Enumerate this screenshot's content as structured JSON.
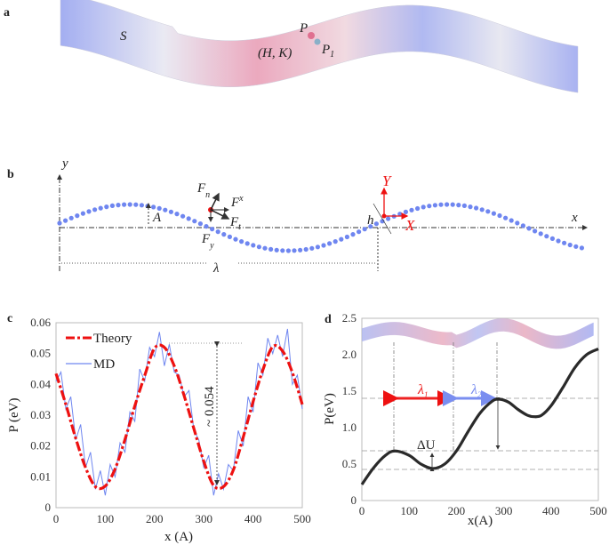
{
  "panels": {
    "a": {
      "label": "a",
      "sheet_label": "S",
      "point_p": "P",
      "point_p1": "P",
      "point_p1_sub": "1",
      "coord_label": "(H, K)"
    },
    "b": {
      "label": "b",
      "y_axis": "y",
      "x_axis": "x",
      "amplitude": "A",
      "wavelength": "λ",
      "fn": "F",
      "fn_sub": "n",
      "fx": "F",
      "fx_sub": "x",
      "ft": "F",
      "ft_sub": "t",
      "fy": "F",
      "fy_sub": "y",
      "h": "h",
      "local_X": "X",
      "local_Y": "Y"
    },
    "c": {
      "label": "c",
      "annotation": "~ 0.054"
    },
    "d": {
      "label": "d",
      "delta_u": "ΔU",
      "lambda1": "λ",
      "lambda1_sub": "1",
      "lambda2": "λ",
      "lambda2_sub": "2"
    }
  },
  "colors": {
    "theory": "#ee1111",
    "md": "#6f86f0",
    "curve_d": "#2a2a2a",
    "dots": "#6f86f0",
    "lambda1": "#ee2222",
    "lambda2": "#7a8ef0",
    "local_axes": "#ee1111"
  },
  "chart_data": [
    {
      "panel": "c",
      "type": "line",
      "xlabel": "x (A)",
      "ylabel": "P (eV)",
      "xlim": [
        0,
        500
      ],
      "ylim": [
        0,
        0.06
      ],
      "xticks": [
        "0",
        "100",
        "200",
        "300",
        "400",
        "500"
      ],
      "yticks": [
        "0",
        "0.01",
        "0.02",
        "0.03",
        "0.04",
        "0.05",
        "0.06"
      ],
      "legend": "top-left",
      "series": [
        {
          "name": "Theory",
          "style": "dash-dot",
          "x": [
            0,
            20,
            40,
            60,
            80,
            100,
            120,
            140,
            160,
            180,
            200,
            220,
            240,
            260,
            280,
            300,
            320,
            340,
            360,
            380,
            400,
            420,
            440,
            460,
            480,
            500
          ],
          "y": [
            0.0435,
            0.0335,
            0.0225,
            0.013,
            0.0068,
            0.007,
            0.0126,
            0.0221,
            0.033,
            0.0428,
            0.0517,
            0.052,
            0.046,
            0.0364,
            0.0256,
            0.015,
            0.0072,
            0.0068,
            0.0122,
            0.0228,
            0.0343,
            0.0447,
            0.0522,
            0.0508,
            0.0438,
            0.0335
          ]
        },
        {
          "name": "MD",
          "style": "solid",
          "x": [
            0,
            10,
            20,
            30,
            40,
            50,
            60,
            70,
            80,
            90,
            100,
            110,
            120,
            130,
            140,
            150,
            160,
            170,
            180,
            190,
            200,
            210,
            220,
            230,
            240,
            250,
            260,
            270,
            280,
            290,
            300,
            310,
            320,
            330,
            340,
            350,
            360,
            370,
            380,
            390,
            400,
            410,
            420,
            430,
            440,
            450,
            460,
            470,
            480,
            490,
            500
          ],
          "y": [
            0.041,
            0.044,
            0.032,
            0.036,
            0.022,
            0.027,
            0.013,
            0.018,
            0.006,
            0.012,
            0.004,
            0.014,
            0.01,
            0.021,
            0.018,
            0.031,
            0.028,
            0.045,
            0.041,
            0.052,
            0.049,
            0.057,
            0.046,
            0.053,
            0.044,
            0.043,
            0.036,
            0.038,
            0.025,
            0.022,
            0.013,
            0.017,
            0.004,
            0.011,
            0.006,
            0.014,
            0.012,
            0.025,
            0.02,
            0.036,
            0.031,
            0.047,
            0.043,
            0.055,
            0.05,
            0.056,
            0.049,
            0.058,
            0.04,
            0.043,
            0.032
          ]
        }
      ]
    },
    {
      "panel": "d",
      "type": "line",
      "xlabel": "x(A)",
      "ylabel": "P(eV)",
      "xlim": [
        0,
        500
      ],
      "ylim": [
        0,
        2.5
      ],
      "xticks": [
        "0",
        "100",
        "200",
        "300",
        "400",
        "500"
      ],
      "yticks": [
        "0",
        "0.5",
        "1.0",
        "1.5",
        "2.0",
        "2.5"
      ],
      "series": [
        {
          "x": [
            0,
            25,
            50,
            70,
            100,
            125,
            150,
            175,
            200,
            225,
            250,
            275,
            290,
            310,
            330,
            350,
            365,
            380,
            400,
            425,
            450,
            475,
            500
          ],
          "y": [
            0.22,
            0.45,
            0.62,
            0.68,
            0.62,
            0.5,
            0.44,
            0.5,
            0.68,
            0.95,
            1.2,
            1.36,
            1.39,
            1.35,
            1.25,
            1.17,
            1.15,
            1.17,
            1.3,
            1.55,
            1.82,
            2.0,
            2.08
          ]
        }
      ]
    }
  ]
}
